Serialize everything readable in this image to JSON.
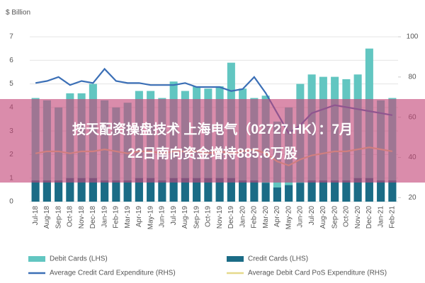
{
  "banner": {
    "line1": "按天配资操盘技术 上海电气（02727.HK）：7月",
    "line2": "22日南向资金增持885.6万股"
  },
  "chart_data": {
    "type": "bar-line",
    "ylabel": "$ Billion",
    "categories": [
      "Jul-18",
      "Aug-18",
      "Sep-18",
      "Oct-18",
      "Nov-18",
      "Dec-18",
      "Jan-19",
      "Feb-19",
      "Mar-19",
      "Apr-19",
      "May-19",
      "Jun-19",
      "Jul-19",
      "Aug-19",
      "Sep-19",
      "Oct-19",
      "Nov-19",
      "Dec-19",
      "Jan-20",
      "Feb-20",
      "Mar-20",
      "Apr-20",
      "May-20",
      "Jun-20",
      "Jul-20",
      "Aug-20",
      "Sep-20",
      "Oct-20",
      "Nov-20",
      "Dec-20",
      "Jan-21",
      "Feb-21"
    ],
    "ylim": [
      0,
      7
    ],
    "yticks": [
      0,
      1,
      2,
      3,
      4,
      5,
      6,
      7
    ],
    "y2lim": [
      18,
      100
    ],
    "y2ticks": [
      20,
      40,
      60,
      80,
      100
    ],
    "series": [
      {
        "name": "Debit Cards (LHS)",
        "kind": "bar",
        "color": "#62c6c1",
        "values": [
          4.4,
          4.3,
          4.0,
          4.6,
          4.6,
          5.0,
          4.3,
          4.0,
          4.2,
          4.7,
          4.7,
          4.4,
          5.1,
          4.7,
          4.9,
          4.8,
          4.9,
          5.9,
          4.8,
          4.4,
          4.5,
          3.4,
          4.0,
          5.0,
          5.4,
          5.3,
          5.3,
          5.2,
          5.4,
          6.5,
          4.3,
          4.4
        ]
      },
      {
        "name": "Credit Cards (LHS)",
        "kind": "bar",
        "color": "#1b6c86",
        "values": [
          0.9,
          0.9,
          0.9,
          1.0,
          1.0,
          1.0,
          0.9,
          0.9,
          0.9,
          1.0,
          1.0,
          0.9,
          1.0,
          1.0,
          1.0,
          1.0,
          1.0,
          1.0,
          0.9,
          0.9,
          0.8,
          0.6,
          0.7,
          0.8,
          0.9,
          0.9,
          0.9,
          0.9,
          1.0,
          1.0,
          0.9,
          0.9
        ]
      },
      {
        "name": "Average Credit Card Expenditure (RHS)",
        "kind": "line",
        "axis": "y2",
        "color": "#3b6fb6",
        "values": [
          77,
          78,
          80,
          76,
          78,
          77,
          84,
          78,
          77,
          77,
          76,
          76,
          76,
          77,
          75,
          75,
          75,
          73,
          74,
          80,
          72,
          62,
          52,
          56,
          62,
          64,
          66,
          65,
          64,
          63,
          62,
          61
        ]
      },
      {
        "name": "Average Debit Card PoS Expenditure (RHS)",
        "kind": "line",
        "axis": "y2",
        "color": "#e6d98c",
        "values": [
          42,
          43,
          43,
          42,
          43,
          43,
          44,
          43,
          42,
          43,
          43,
          42,
          43,
          43,
          43,
          42,
          43,
          42,
          43,
          44,
          42,
          38,
          36,
          39,
          41,
          42,
          43,
          43,
          44,
          45,
          44,
          43
        ]
      }
    ]
  }
}
